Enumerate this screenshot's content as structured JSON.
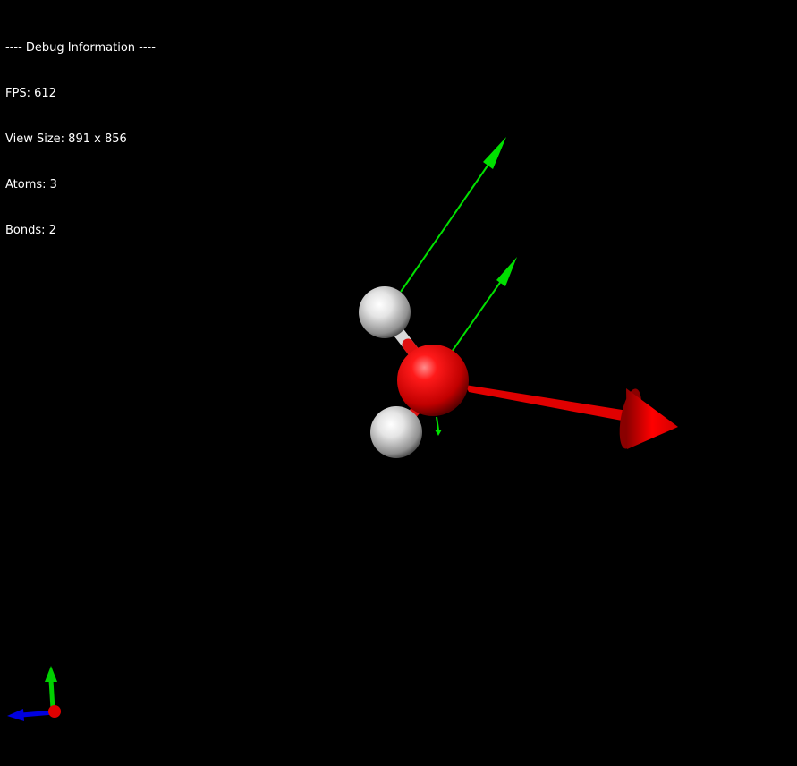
{
  "debug": {
    "header": "---- Debug Information ----",
    "fps": "FPS: 612",
    "view_size": "View Size: 891 x 856",
    "atoms": "Atoms: 3",
    "bonds": "Bonds: 2"
  },
  "molecule": {
    "atoms": [
      {
        "element": "O",
        "color": "#ff0000"
      },
      {
        "element": "H",
        "color": "#ffffff"
      },
      {
        "element": "H",
        "color": "#ffffff"
      }
    ],
    "vector_colors": {
      "dipole": "#ff0000",
      "force": "#00ff00"
    }
  },
  "axis_gizmo": {
    "x_color": "#ff0000",
    "y_color": "#00ff00",
    "z_color": "#0000ff"
  }
}
